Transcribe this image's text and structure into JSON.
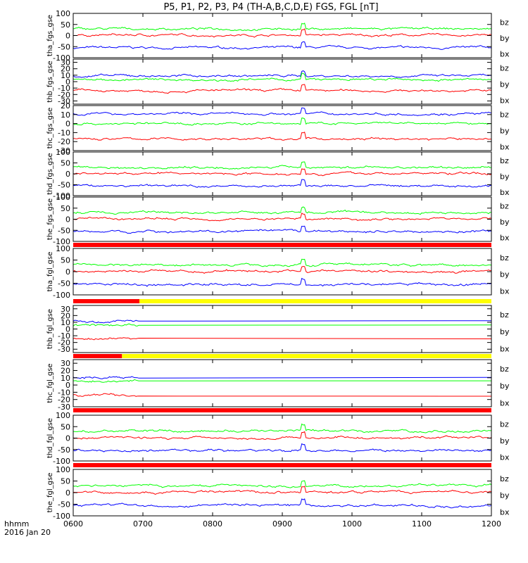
{
  "title": "P5, P1, P2, P3, P4 (TH-A,B,C,D,E) FGS, FGL [nT]",
  "footer": {
    "line1": "hhmm",
    "line2": "2016 Jan 20"
  },
  "colors": {
    "bz": "#ff0000",
    "by": "#00ff00",
    "bx": "#0000ff",
    "bar_red": "#ff0000",
    "bar_yellow": "#ffff00",
    "bar_black": "#000000"
  },
  "chart_data": {
    "type": "line",
    "x_ticks": [
      "0600",
      "0700",
      "0800",
      "0900",
      "1000",
      "1100",
      "1200"
    ],
    "x_range_hours": [
      6,
      12
    ],
    "panels": [
      {
        "ylabel": "tha_fgs_gse",
        "ylim": [
          -100,
          100
        ],
        "yticks": [
          "100",
          "50",
          "0",
          "-50",
          "-100"
        ],
        "legend": [
          "bz",
          "by",
          "bx"
        ],
        "bx_mean": -55,
        "by_mean": 30,
        "bz_mean": 2
      },
      {
        "ylabel": "thb_fgs_gse",
        "ylim": [
          -35,
          35
        ],
        "yticks": [
          "30",
          "20",
          "10",
          "0",
          "-10",
          "-20",
          "-30"
        ],
        "legend": [
          "bz",
          "by",
          "bx"
        ],
        "bx_mean": 9,
        "by_mean": 3,
        "bz_mean": -14
      },
      {
        "ylabel": "thc_fgs_gse",
        "ylim": [
          -30,
          20
        ],
        "yticks": [
          "20",
          "10",
          "0",
          "-10",
          "-20",
          "-30"
        ],
        "legend": [
          "bz",
          "by",
          "bx"
        ],
        "bx_mean": 11,
        "by_mean": 0,
        "bz_mean": -17
      },
      {
        "ylabel": "thd_fgs_gse",
        "ylim": [
          -100,
          100
        ],
        "yticks": [
          "100",
          "50",
          "0",
          "-50",
          "-100"
        ],
        "legend": [
          "bz",
          "by",
          "bx"
        ],
        "bx_mean": -55,
        "by_mean": 30,
        "bz_mean": 2
      },
      {
        "ylabel": "the_fgs_gse",
        "ylim": [
          -100,
          100
        ],
        "yticks": [
          "100",
          "50",
          "0",
          "-50",
          "-100"
        ],
        "legend": [
          "bz",
          "by",
          "bx"
        ],
        "bx_mean": -55,
        "by_mean": 30,
        "bz_mean": 2
      },
      {
        "ylabel": "tha_fgl_gse",
        "ylim": [
          -100,
          100
        ],
        "yticks": [
          "100",
          "50",
          "0",
          "-50",
          "-100"
        ],
        "legend": [
          "bz",
          "by",
          "bx"
        ],
        "bx_mean": -55,
        "by_mean": 30,
        "bz_mean": 2
      },
      {
        "ylabel": "thb_fgl_gse",
        "ylim": [
          -35,
          35
        ],
        "yticks": [
          "30",
          "20",
          "10",
          "0",
          "-10",
          "-20",
          "-30"
        ],
        "legend": [
          "bz",
          "by",
          "bx"
        ],
        "bx_mean": 12,
        "by_mean": 6,
        "bz_mean": -14
      },
      {
        "ylabel": "thc_fgl_gse",
        "ylim": [
          -30,
          35
        ],
        "yticks": [
          "30",
          "20",
          "10",
          "0",
          "-10",
          "-20",
          "-30"
        ],
        "legend": [
          "bz",
          "by",
          "bx"
        ],
        "bx_mean": 10,
        "by_mean": 6,
        "bz_mean": -14
      },
      {
        "ylabel": "thd_fgl_gse",
        "ylim": [
          -100,
          100
        ],
        "yticks": [
          "100",
          "50",
          "0",
          "-50",
          "-100"
        ],
        "legend": [
          "bz",
          "by",
          "bx"
        ],
        "bx_mean": -55,
        "by_mean": 30,
        "bz_mean": 2
      },
      {
        "ylabel": "the_fgl_gse",
        "ylim": [
          -100,
          100
        ],
        "yticks": [
          "100",
          "50",
          "0",
          "-50",
          "-100"
        ],
        "legend": [
          "bz",
          "by",
          "bx"
        ],
        "bx_mean": -55,
        "by_mean": 30,
        "bz_mean": 2
      }
    ],
    "status_bars": [
      {
        "after_panel": 4,
        "segments": [
          {
            "from": 6.0,
            "to": 12.0,
            "color": "red"
          }
        ]
      },
      {
        "after_panel": 5,
        "segments": [
          {
            "from": 6.0,
            "to": 6.95,
            "color": "red"
          },
          {
            "from": 6.95,
            "to": 12.0,
            "color": "yellow"
          }
        ]
      },
      {
        "after_panel": 6,
        "segments": [
          {
            "from": 6.0,
            "to": 6.7,
            "color": "red"
          },
          {
            "from": 6.7,
            "to": 12.0,
            "color": "yellow"
          }
        ]
      },
      {
        "after_panel": 7,
        "segments": [
          {
            "from": 6.0,
            "to": 12.0,
            "color": "red"
          }
        ]
      },
      {
        "after_panel": 8,
        "segments": [
          {
            "from": 6.0,
            "to": 12.0,
            "color": "red"
          }
        ]
      }
    ]
  }
}
